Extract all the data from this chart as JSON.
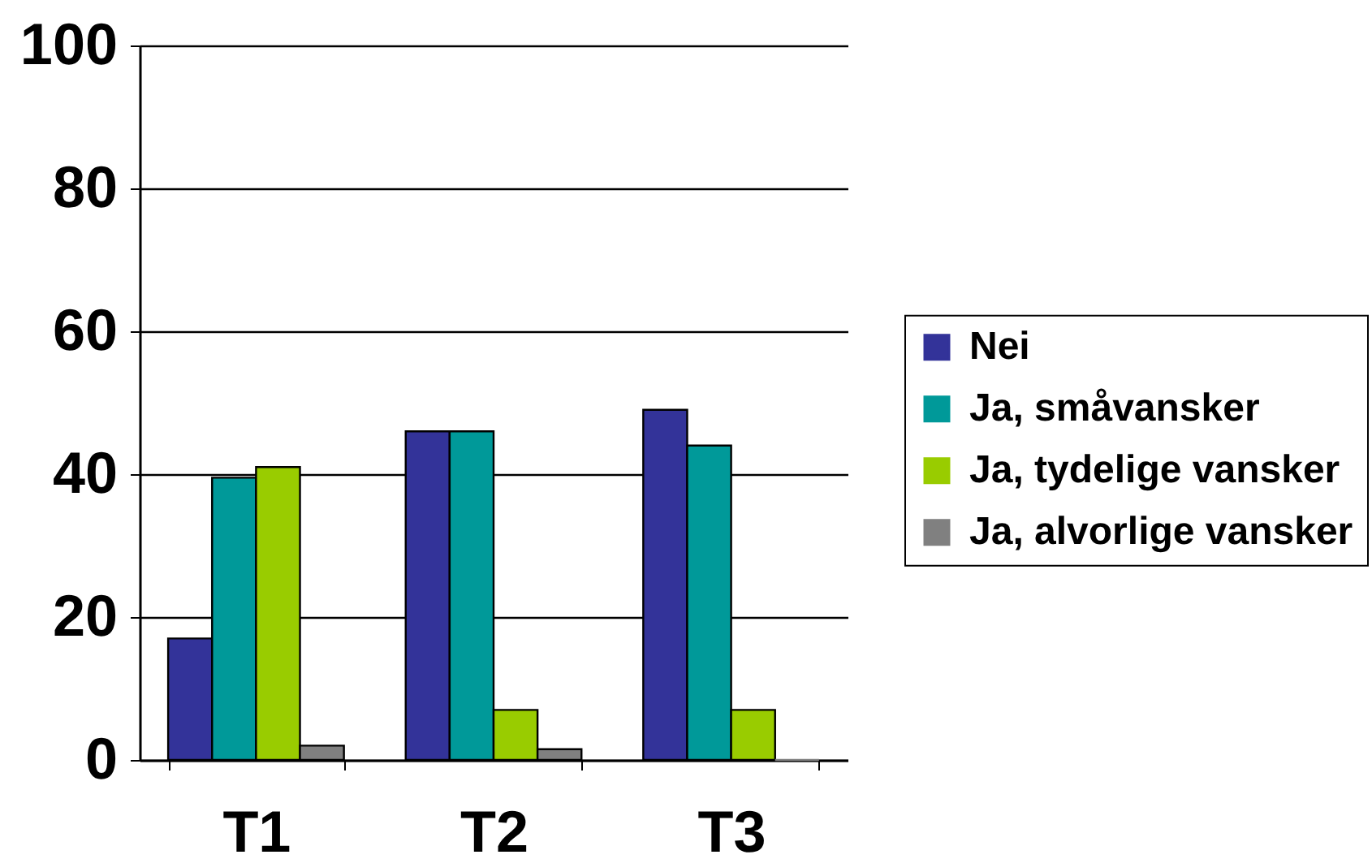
{
  "chart_data": {
    "type": "bar",
    "categories": [
      "T1",
      "T2",
      "T3"
    ],
    "series": [
      {
        "name": "Nei",
        "color": "#333399",
        "values": [
          17,
          46,
          49
        ]
      },
      {
        "name": "Ja, småvansker",
        "color": "#009999",
        "values": [
          39.5,
          46,
          44
        ]
      },
      {
        "name": "Ja, tydelige vansker",
        "color": "#99cc00",
        "values": [
          41,
          7,
          7
        ]
      },
      {
        "name": "Ja, alvorlige vansker",
        "color": "#808080",
        "values": [
          2,
          1.5,
          0
        ]
      }
    ],
    "ylim": [
      0,
      100
    ],
    "yticks": [
      0,
      20,
      40,
      60,
      80,
      100
    ],
    "grid": "y",
    "legend": "right"
  }
}
